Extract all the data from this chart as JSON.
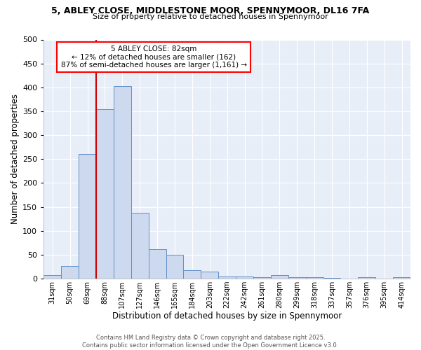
{
  "title1": "5, ABLEY CLOSE, MIDDLESTONE MOOR, SPENNYMOOR, DL16 7FA",
  "title2": "Size of property relative to detached houses in Spennymoor",
  "xlabel": "Distribution of detached houses by size in Spennymoor",
  "ylabel": "Number of detached properties",
  "bin_labels": [
    "31sqm",
    "50sqm",
    "69sqm",
    "88sqm",
    "107sqm",
    "127sqm",
    "146sqm",
    "165sqm",
    "184sqm",
    "203sqm",
    "222sqm",
    "242sqm",
    "261sqm",
    "280sqm",
    "299sqm",
    "318sqm",
    "337sqm",
    "357sqm",
    "376sqm",
    "395sqm",
    "414sqm"
  ],
  "bin_values": [
    7,
    26,
    260,
    355,
    402,
    137,
    62,
    50,
    18,
    15,
    5,
    5,
    3,
    7,
    3,
    3,
    2,
    0,
    3,
    0,
    3
  ],
  "bar_facecolor": "#cdd9ee",
  "bar_edgecolor": "#6090c8",
  "vline_x": 2.5,
  "vline_color": "#cc0000",
  "annotation_text": "5 ABLEY CLOSE: 82sqm\n← 12% of detached houses are smaller (162)\n87% of semi-detached houses are larger (1,161) →",
  "ylim": [
    0,
    500
  ],
  "yticks": [
    0,
    50,
    100,
    150,
    200,
    250,
    300,
    350,
    400,
    450,
    500
  ],
  "plot_bg_color": "#e8eef8",
  "fig_bg_color": "#ffffff",
  "grid_color": "#ffffff",
  "footer": "Contains HM Land Registry data © Crown copyright and database right 2025.\nContains public sector information licensed under the Open Government Licence v3.0."
}
